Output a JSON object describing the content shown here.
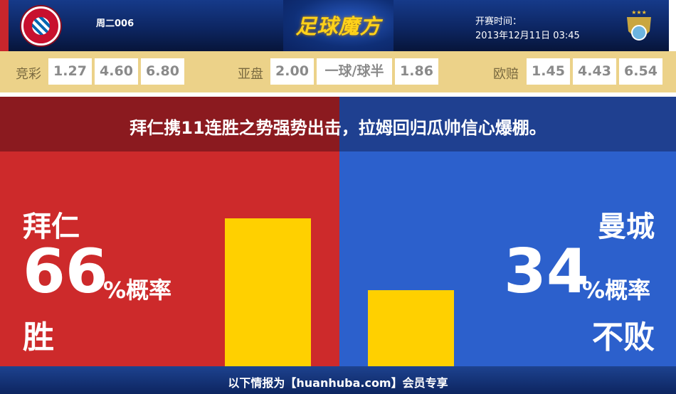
{
  "header": {
    "match_no": "周二006",
    "brand": "足球魔方",
    "time_label": "开赛时间：",
    "time_value": "2013年12月11日 03:45",
    "home_logo": "fc-bayern-logo",
    "away_logo": "man-city-logo"
  },
  "odds": {
    "jingcai": {
      "label": "竞彩",
      "values": [
        "1.27",
        "4.60",
        "6.80"
      ]
    },
    "yapan": {
      "label": "亚盘",
      "values": [
        "2.00",
        "一球/球半",
        "1.86"
      ]
    },
    "oupei": {
      "label": "欧赔",
      "values": [
        "1.45",
        "4.43",
        "6.54"
      ]
    }
  },
  "headline": "拜仁携11连胜之势强势出击，拉姆回归瓜帅信心爆棚。",
  "home": {
    "name": "拜仁",
    "percent": "66",
    "unit": "%概率",
    "outcome": "胜",
    "color": "#cd2a2b"
  },
  "away": {
    "name": "曼城",
    "percent": "34",
    "unit": "%概率",
    "outcome": "不败",
    "color": "#2c60cc"
  },
  "bar_color": "#ffd000",
  "footer": "以下情报为【huanhuba.com】会员专享"
}
